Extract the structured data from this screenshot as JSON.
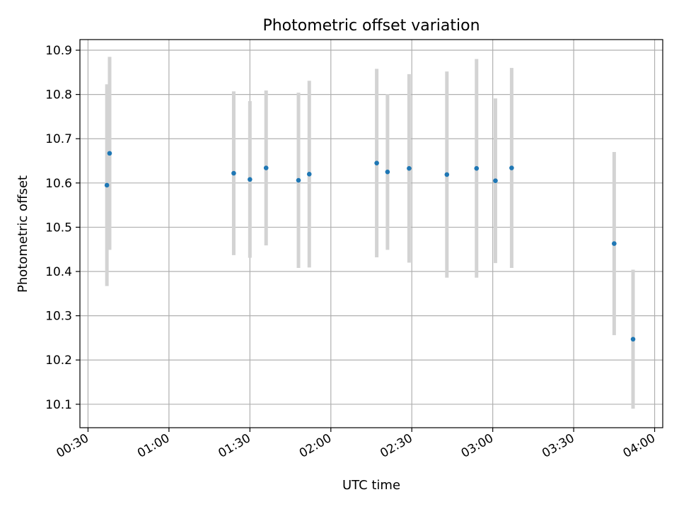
{
  "chart_data": {
    "type": "scatter",
    "title": "Photometric offset variation",
    "xlabel": "UTC time",
    "ylabel": "Photometric offset",
    "grid": true,
    "xlim": [
      "00:27",
      "04:03"
    ],
    "ylim": [
      10.047,
      10.924
    ],
    "x_ticks": [
      "00:30",
      "01:00",
      "01:30",
      "02:00",
      "02:30",
      "03:00",
      "03:30",
      "04:00"
    ],
    "y_ticks": [
      "10.1",
      "10.2",
      "10.3",
      "10.4",
      "10.5",
      "10.6",
      "10.7",
      "10.8",
      "10.9"
    ],
    "series": [
      {
        "marker_color": "#1f77b4",
        "errorbar_color": "#d3d3d3",
        "points": [
          {
            "x": "00:37",
            "y": 10.595,
            "yerr": 0.228
          },
          {
            "x": "00:38",
            "y": 10.667,
            "yerr": 0.218
          },
          {
            "x": "01:24",
            "y": 10.622,
            "yerr": 0.185
          },
          {
            "x": "01:30",
            "y": 10.608,
            "yerr": 0.177
          },
          {
            "x": "01:36",
            "y": 10.634,
            "yerr": 0.175
          },
          {
            "x": "01:48",
            "y": 10.606,
            "yerr": 0.198
          },
          {
            "x": "01:52",
            "y": 10.62,
            "yerr": 0.211
          },
          {
            "x": "02:17",
            "y": 10.645,
            "yerr": 0.213
          },
          {
            "x": "02:21",
            "y": 10.625,
            "yerr": 0.176
          },
          {
            "x": "02:29",
            "y": 10.633,
            "yerr": 0.213
          },
          {
            "x": "02:43",
            "y": 10.619,
            "yerr": 0.233
          },
          {
            "x": "02:54",
            "y": 10.633,
            "yerr": 0.247
          },
          {
            "x": "03:01",
            "y": 10.605,
            "yerr": 0.186
          },
          {
            "x": "03:07",
            "y": 10.634,
            "yerr": 0.226
          },
          {
            "x": "03:45",
            "y": 10.463,
            "yerr": 0.207
          },
          {
            "x": "03:52",
            "y": 10.247,
            "yerr": 0.157
          }
        ]
      }
    ]
  }
}
